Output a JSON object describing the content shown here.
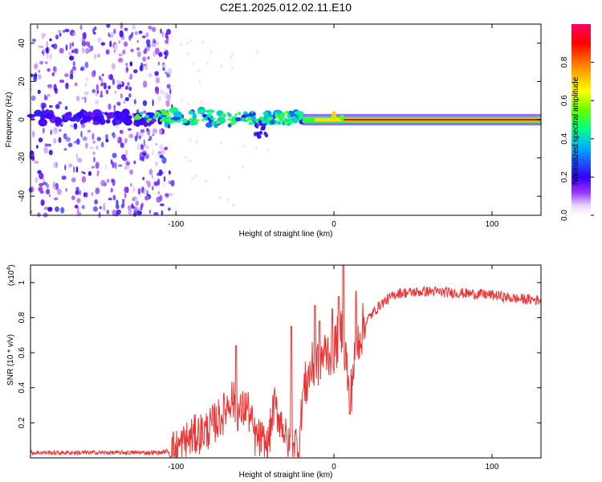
{
  "title": "C2E1.2025.012.02.11.E10",
  "chart_data": [
    {
      "type": "heatmap",
      "name": "spectrogram",
      "xlabel": "Height of straight line (km)",
      "ylabel": "Frequency (Hz)",
      "xlim": [
        -192,
        131
      ],
      "ylim": [
        -50,
        50
      ],
      "xticks": [
        -100,
        0,
        100
      ],
      "yticks": [
        -40,
        -20,
        0,
        20,
        40
      ],
      "colorbar": {
        "label": "Normalized spectral amplitude",
        "range": [
          0,
          1
        ],
        "ticks": [
          0.0,
          0.2,
          0.4,
          0.6,
          0.8
        ],
        "colormap": [
          "#ffffff",
          "#9933ff",
          "#3300ff",
          "#00aaff",
          "#00ff88",
          "#66ff00",
          "#ffff00",
          "#ff8800",
          "#ff0000",
          "#ff0066"
        ]
      },
      "regions": [
        {
          "x": [
            -192,
            -103
          ],
          "freq_spread": 50,
          "amplitude": [
            0.05,
            0.25
          ],
          "description": "scattered noise"
        },
        {
          "x": [
            -130,
            -20
          ],
          "freq_spread": 8,
          "amplitude": [
            0.2,
            0.5
          ]
        },
        {
          "x": [
            -20,
            131
          ],
          "freq_spread": 1,
          "amplitude": [
            0.8,
            1.0
          ]
        }
      ],
      "color_stops": [
        {
          "v": 0.0,
          "c": "#ffffff"
        },
        {
          "v": 0.05,
          "c": "#e8d8ff"
        },
        {
          "v": 0.12,
          "c": "#9933ff"
        },
        {
          "v": 0.2,
          "c": "#3300ff"
        },
        {
          "v": 0.35,
          "c": "#00aaff"
        },
        {
          "v": 0.45,
          "c": "#00ff88"
        },
        {
          "v": 0.55,
          "c": "#66ff00"
        },
        {
          "v": 0.65,
          "c": "#ffff00"
        },
        {
          "v": 0.78,
          "c": "#ff8800"
        },
        {
          "v": 0.9,
          "c": "#ff0000"
        },
        {
          "v": 1.0,
          "c": "#ff0066"
        }
      ]
    },
    {
      "type": "line",
      "name": "snr",
      "xlabel": "Height of straight line (km)",
      "ylabel": "SNR (10 * v/v)",
      "yscale_label": "(x10",
      "yscale_exp": "4",
      "yscale_close": ")",
      "xlim": [
        -192,
        131
      ],
      "ylim": [
        0,
        1.1
      ],
      "xticks": [
        -100,
        0,
        100
      ],
      "yticks": [
        0.2,
        0.4,
        0.6,
        0.8,
        1.0
      ],
      "color": "#ee3333",
      "keypoints": [
        [
          -192,
          0.03
        ],
        [
          -110,
          0.03
        ],
        [
          -100,
          0.05
        ],
        [
          -90,
          0.12
        ],
        [
          -80,
          0.16
        ],
        [
          -70,
          0.25
        ],
        [
          -65,
          0.35
        ],
        [
          -60,
          0.25
        ],
        [
          -55,
          0.3
        ],
        [
          -50,
          0.12
        ],
        [
          -45,
          0.1
        ],
        [
          -42,
          0.05
        ],
        [
          -38,
          0.3
        ],
        [
          -32,
          0.18
        ],
        [
          -29,
          0.05
        ],
        [
          -26,
          0.12
        ],
        [
          -22,
          0.05
        ],
        [
          -20,
          0.35
        ],
        [
          -15,
          0.5
        ],
        [
          -10,
          0.55
        ],
        [
          -5,
          0.6
        ],
        [
          0,
          0.62
        ],
        [
          5,
          0.72
        ],
        [
          8,
          0.55
        ],
        [
          10,
          0.28
        ],
        [
          12,
          0.5
        ],
        [
          16,
          0.7
        ],
        [
          22,
          0.8
        ],
        [
          30,
          0.88
        ],
        [
          40,
          0.94
        ],
        [
          60,
          0.95
        ],
        [
          80,
          0.94
        ],
        [
          100,
          0.93
        ],
        [
          113,
          0.91
        ],
        [
          131,
          0.9
        ]
      ],
      "spikes": [
        [
          -62,
          0.64
        ],
        [
          -45,
          0.12
        ],
        [
          -27,
          0.75
        ],
        [
          -12,
          0.87
        ],
        [
          -9,
          0.78
        ],
        [
          -1,
          0.85
        ],
        [
          3,
          0.92
        ],
        [
          6,
          1.1
        ],
        [
          10,
          0.25
        ],
        [
          14,
          0.95
        ]
      ]
    }
  ]
}
